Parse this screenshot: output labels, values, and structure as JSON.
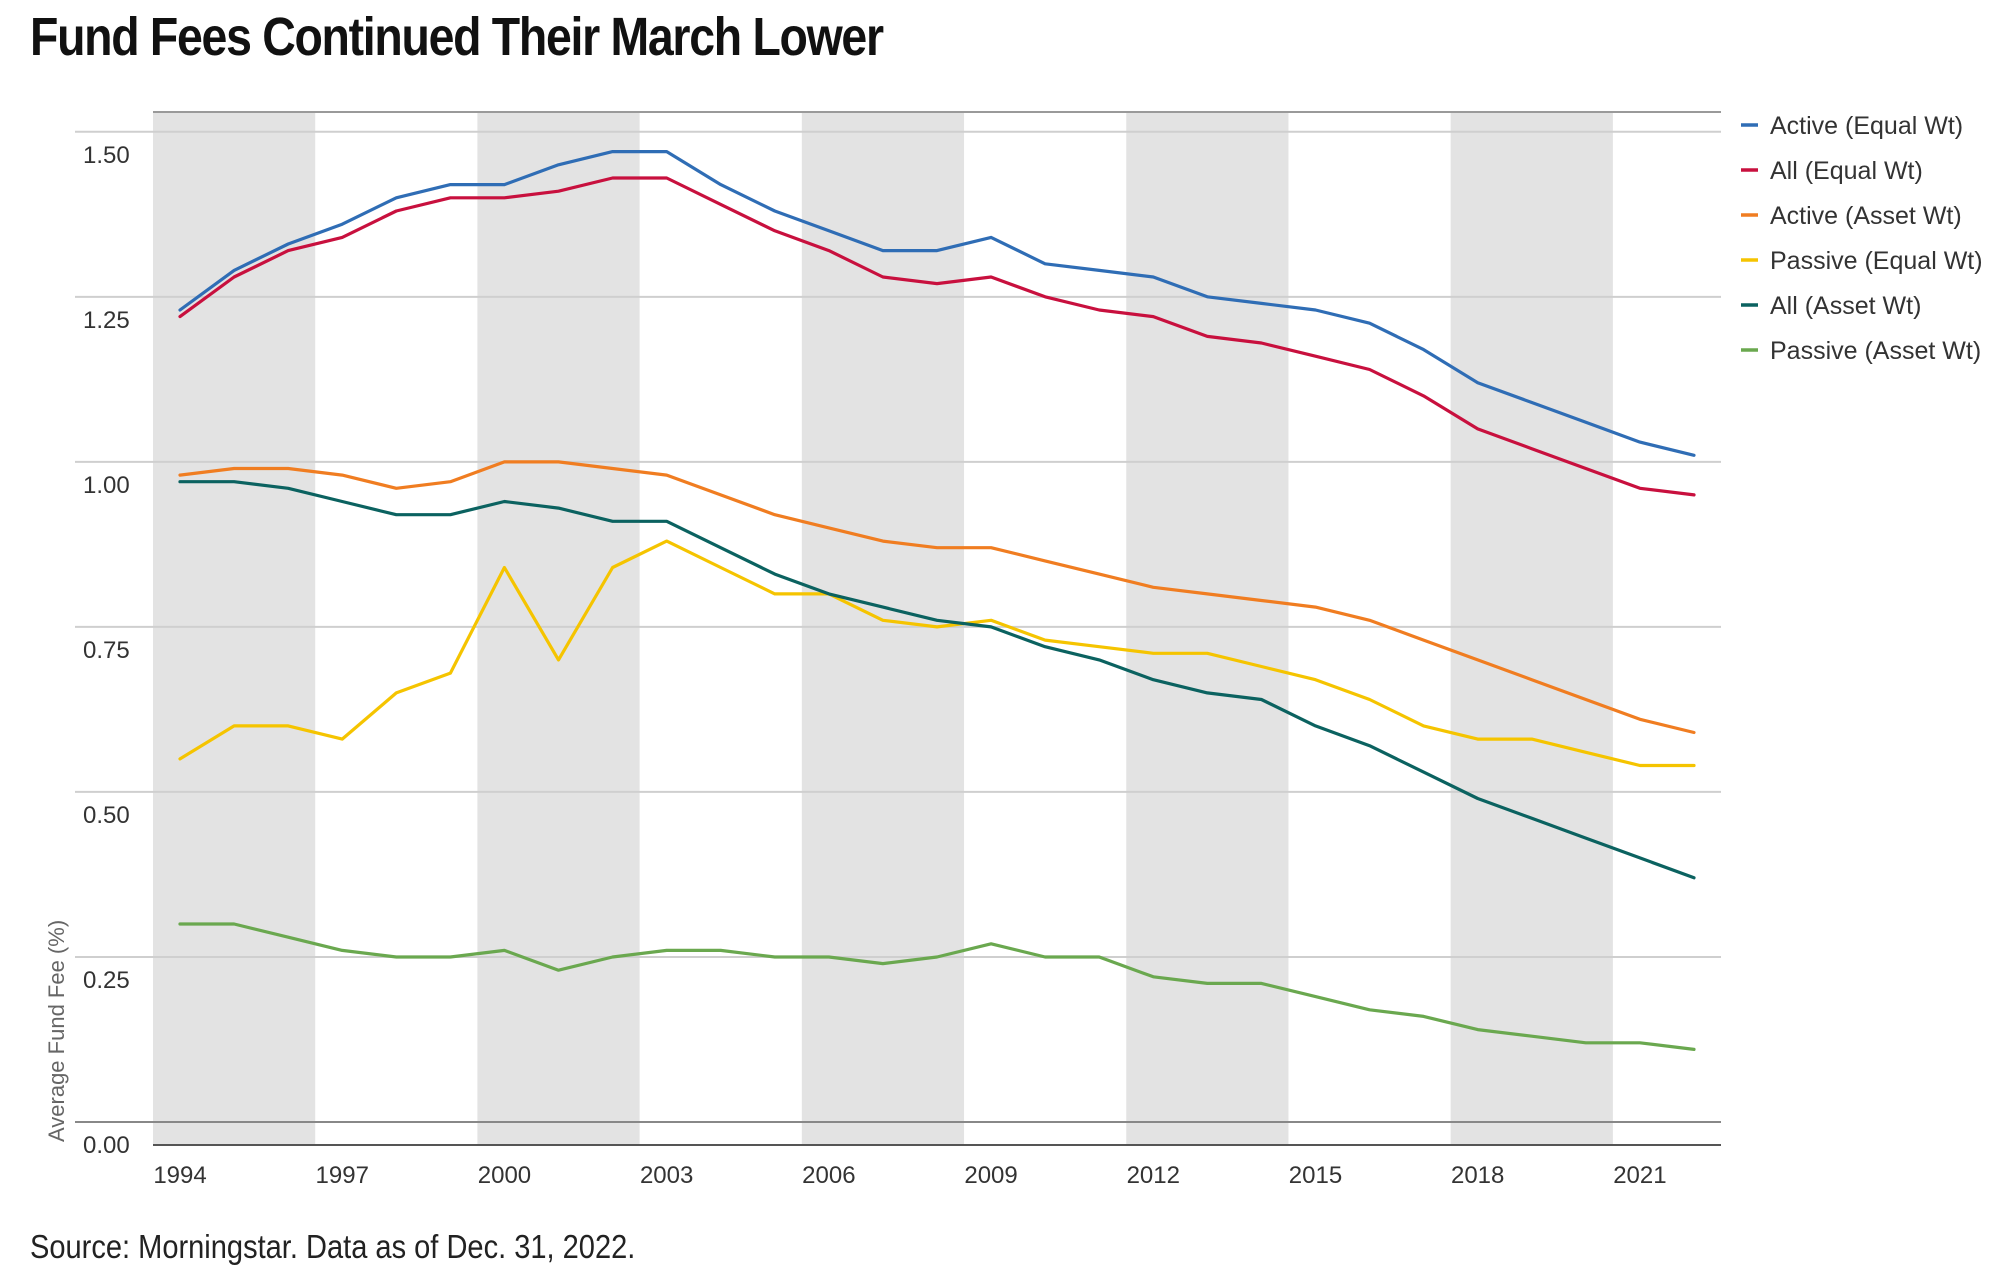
{
  "title": "Fund Fees Continued Their March Lower",
  "source": "Source: Morningstar. Data as of Dec. 31, 2022.",
  "chart_data": {
    "type": "line",
    "title": "Fund Fees Continued Their March Lower",
    "xlabel": "",
    "ylabel": "Average Fund Fee (%)",
    "ylim": [
      0,
      1.5
    ],
    "xlim": [
      1994,
      2022
    ],
    "yticks": [
      "0.00",
      "0.25",
      "0.50",
      "0.75",
      "1.00",
      "1.25",
      "1.50"
    ],
    "xticks": [
      "1994",
      "1997",
      "2000",
      "2003",
      "2006",
      "2009",
      "2012",
      "2015",
      "2018",
      "2021"
    ],
    "grid": true,
    "legend_position": "right",
    "shaded_bands": [
      [
        1993.5,
        1996.5
      ],
      [
        1999.5,
        2002.5
      ],
      [
        2005.5,
        2008.5
      ],
      [
        2011.5,
        2014.5
      ],
      [
        2017.5,
        2020.5
      ]
    ],
    "x": [
      1994,
      1995,
      1996,
      1997,
      1998,
      1999,
      2000,
      2001,
      2002,
      2003,
      2004,
      2005,
      2006,
      2007,
      2008,
      2009,
      2010,
      2011,
      2012,
      2013,
      2014,
      2015,
      2016,
      2017,
      2018,
      2019,
      2020,
      2021,
      2022
    ],
    "series": [
      {
        "name": "Active (Equal Wt)",
        "color": "#2f6db5",
        "values": [
          1.23,
          1.29,
          1.33,
          1.36,
          1.4,
          1.42,
          1.42,
          1.45,
          1.47,
          1.47,
          1.42,
          1.38,
          1.35,
          1.32,
          1.32,
          1.34,
          1.3,
          1.29,
          1.28,
          1.25,
          1.24,
          1.23,
          1.21,
          1.17,
          1.12,
          1.09,
          1.06,
          1.03,
          1.01
        ]
      },
      {
        "name": "All (Equal Wt)",
        "color": "#c8103e",
        "values": [
          1.22,
          1.28,
          1.32,
          1.34,
          1.38,
          1.4,
          1.4,
          1.41,
          1.43,
          1.43,
          1.39,
          1.35,
          1.32,
          1.28,
          1.27,
          1.28,
          1.25,
          1.23,
          1.22,
          1.19,
          1.18,
          1.16,
          1.14,
          1.1,
          1.05,
          1.02,
          0.99,
          0.96,
          0.95
        ]
      },
      {
        "name": "Active (Asset Wt)",
        "color": "#f07d21",
        "values": [
          0.98,
          0.99,
          0.99,
          0.98,
          0.96,
          0.97,
          1.0,
          1.0,
          0.99,
          0.98,
          0.95,
          0.92,
          0.9,
          0.88,
          0.87,
          0.87,
          0.85,
          0.83,
          0.81,
          0.8,
          0.79,
          0.78,
          0.76,
          0.73,
          0.7,
          0.67,
          0.64,
          0.61,
          0.59
        ]
      },
      {
        "name": "Passive (Equal Wt)",
        "color": "#f5c400",
        "values": [
          0.55,
          0.6,
          0.6,
          0.58,
          0.65,
          0.68,
          0.84,
          0.7,
          0.84,
          0.88,
          0.84,
          0.8,
          0.8,
          0.76,
          0.75,
          0.76,
          0.73,
          0.72,
          0.71,
          0.71,
          0.69,
          0.67,
          0.64,
          0.6,
          0.58,
          0.58,
          0.56,
          0.54,
          0.54
        ]
      },
      {
        "name": "All (Asset Wt)",
        "color": "#0b6260",
        "values": [
          0.97,
          0.97,
          0.96,
          0.94,
          0.92,
          0.92,
          0.94,
          0.93,
          0.91,
          0.91,
          0.87,
          0.83,
          0.8,
          0.78,
          0.76,
          0.75,
          0.72,
          0.7,
          0.67,
          0.65,
          0.64,
          0.6,
          0.57,
          0.53,
          0.49,
          0.46,
          0.43,
          0.4,
          0.37
        ]
      },
      {
        "name": "Passive (Asset Wt)",
        "color": "#6aa84f",
        "values": [
          0.3,
          0.3,
          0.28,
          0.26,
          0.25,
          0.25,
          0.26,
          0.23,
          0.25,
          0.26,
          0.26,
          0.25,
          0.25,
          0.24,
          0.25,
          0.27,
          0.25,
          0.25,
          0.22,
          0.21,
          0.21,
          0.19,
          0.17,
          0.16,
          0.14,
          0.13,
          0.12,
          0.12,
          0.11
        ]
      }
    ]
  }
}
